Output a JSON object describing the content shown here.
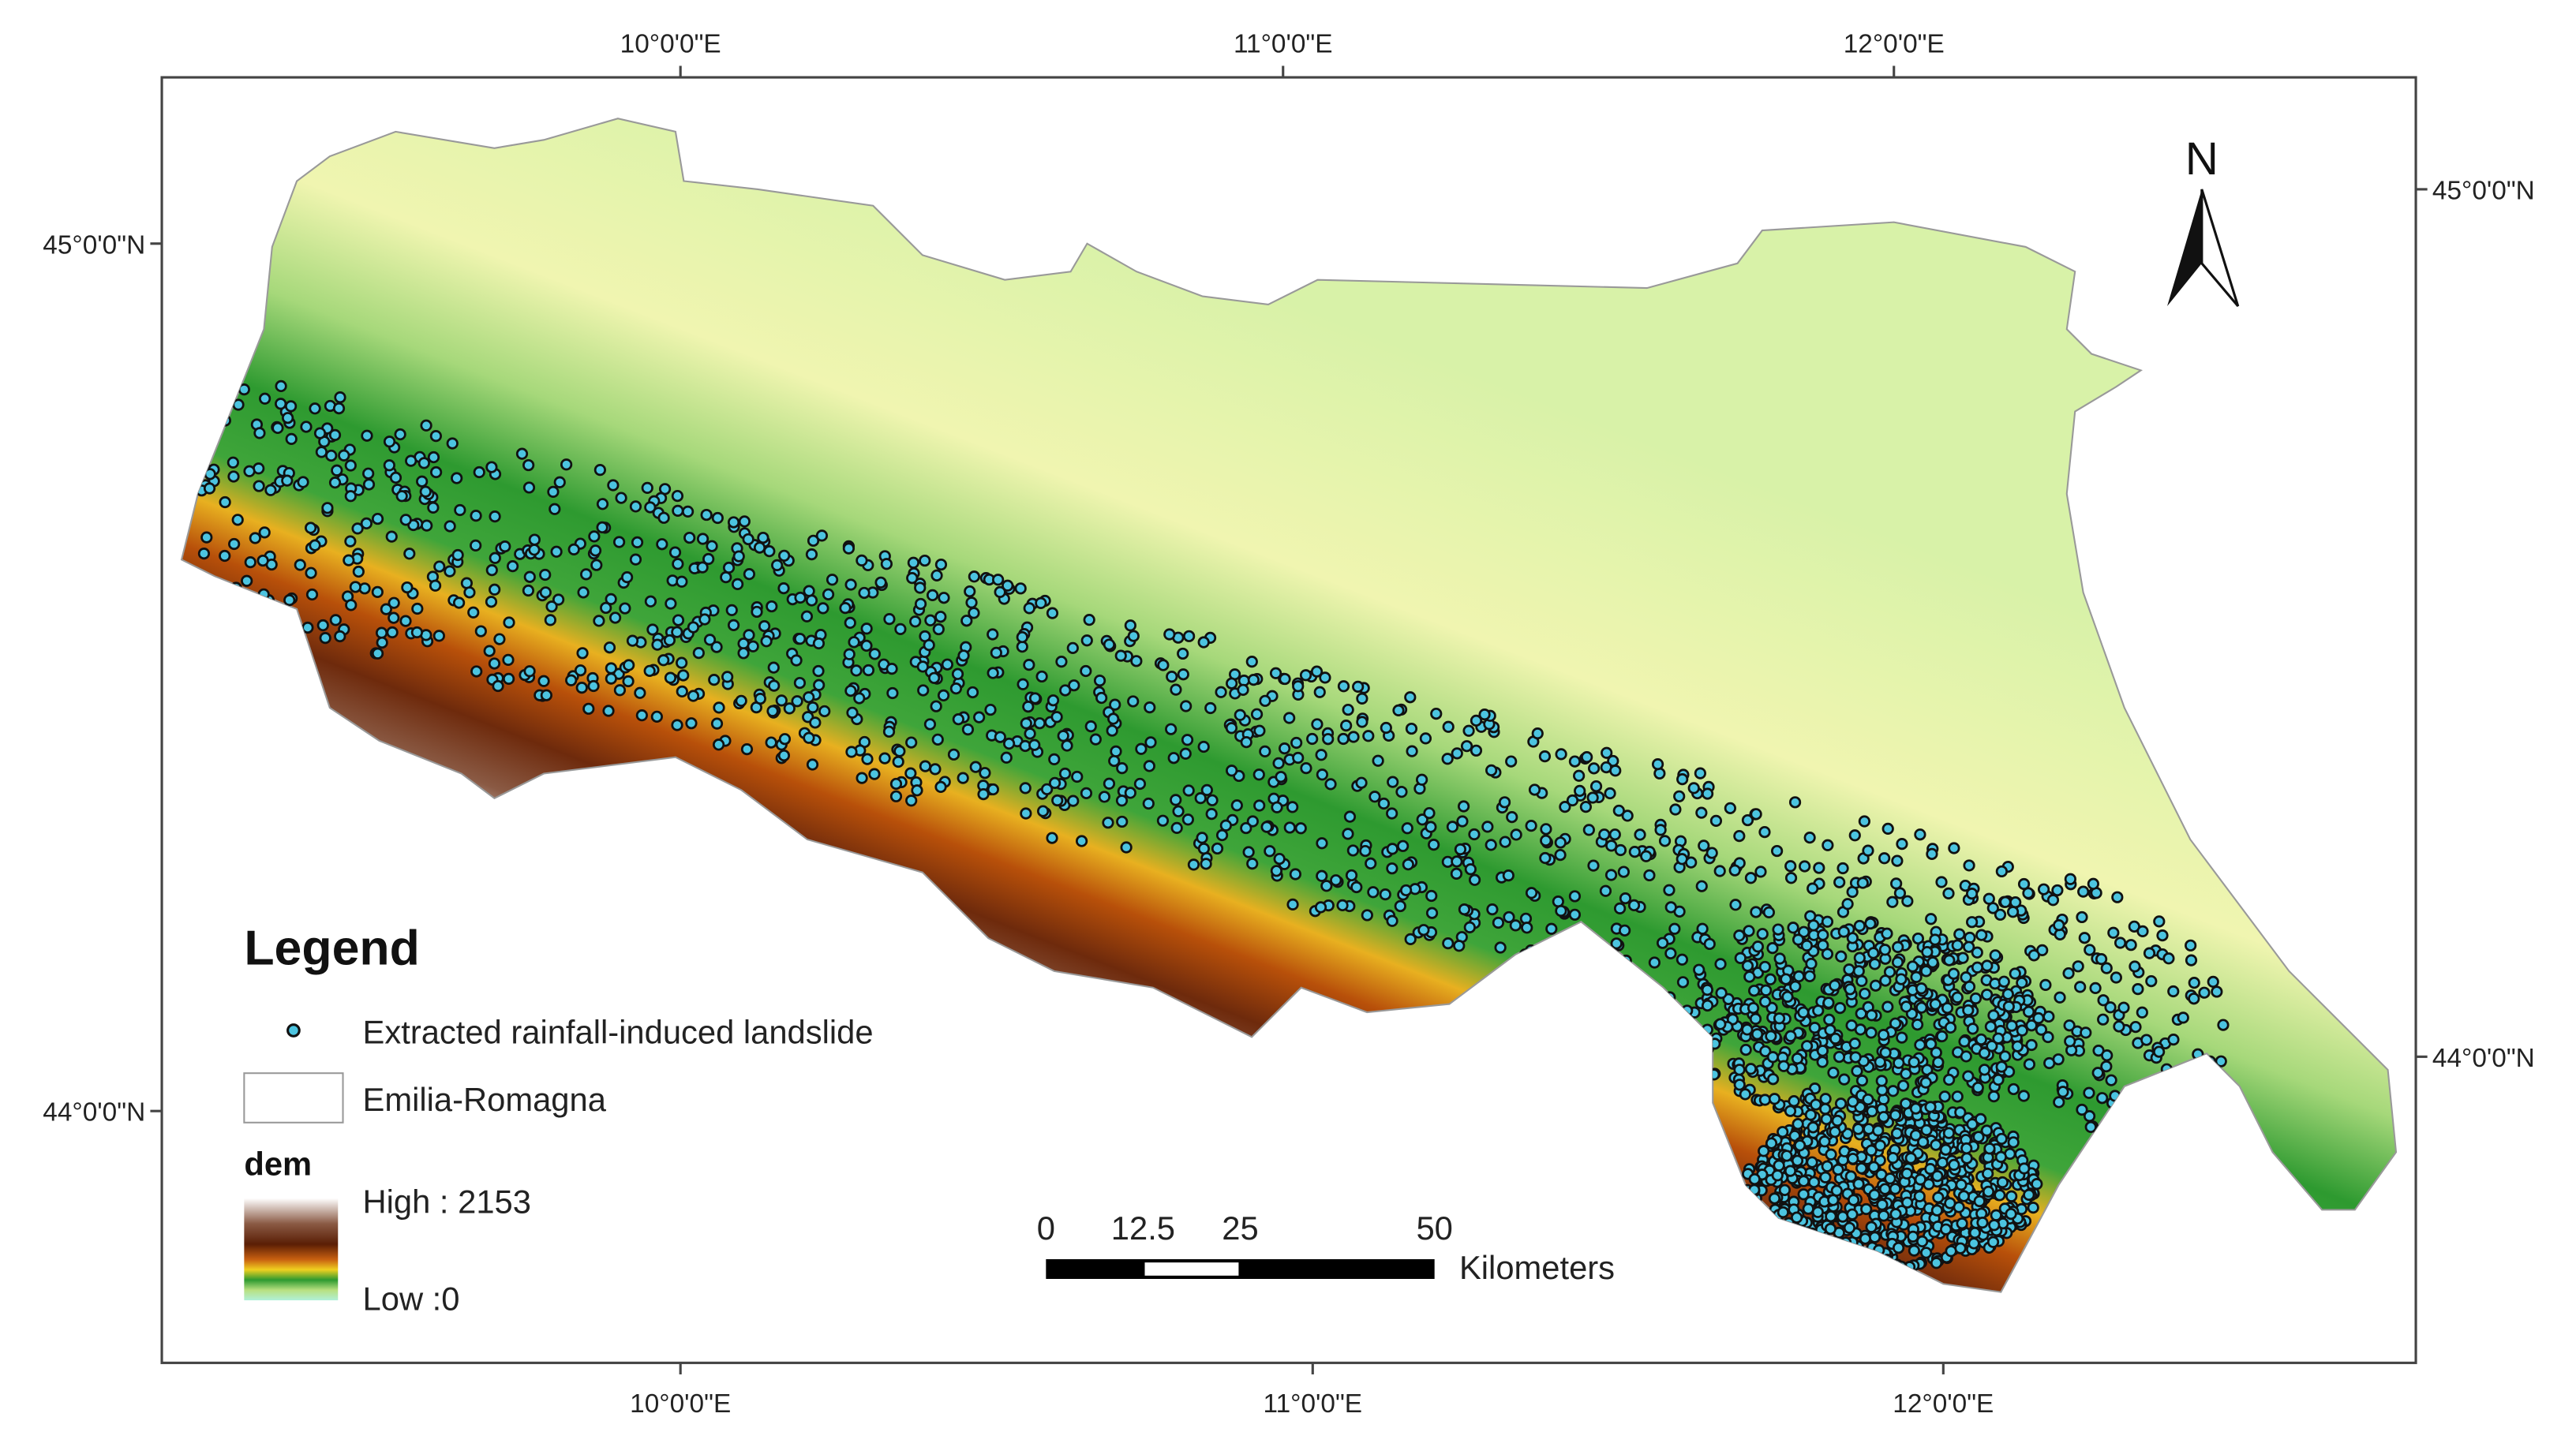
{
  "map": {
    "graticule": {
      "top": [
        "10°0'0\"E",
        "11°0'0\"E",
        "12°0'0\"E"
      ],
      "bottom": [
        "10°0'0\"E",
        "11°0'0\"E",
        "12°0'0\"E"
      ],
      "left": [
        "45°0'0\"N",
        "44°0'0\"N"
      ],
      "right": [
        "45°0'0\"N",
        "44°0'0\"N"
      ]
    },
    "north_arrow": "N",
    "legend": {
      "title": "Legend",
      "items": [
        "Extracted rainfall-induced landslide",
        "Emilia-Romagna"
      ],
      "dem": {
        "title": "dem",
        "high": "High : 2153",
        "low": "Low :0"
      }
    },
    "scale_bar": {
      "ticks": [
        "0",
        "12.5",
        "25",
        "50"
      ],
      "unit": "Kilometers"
    }
  }
}
